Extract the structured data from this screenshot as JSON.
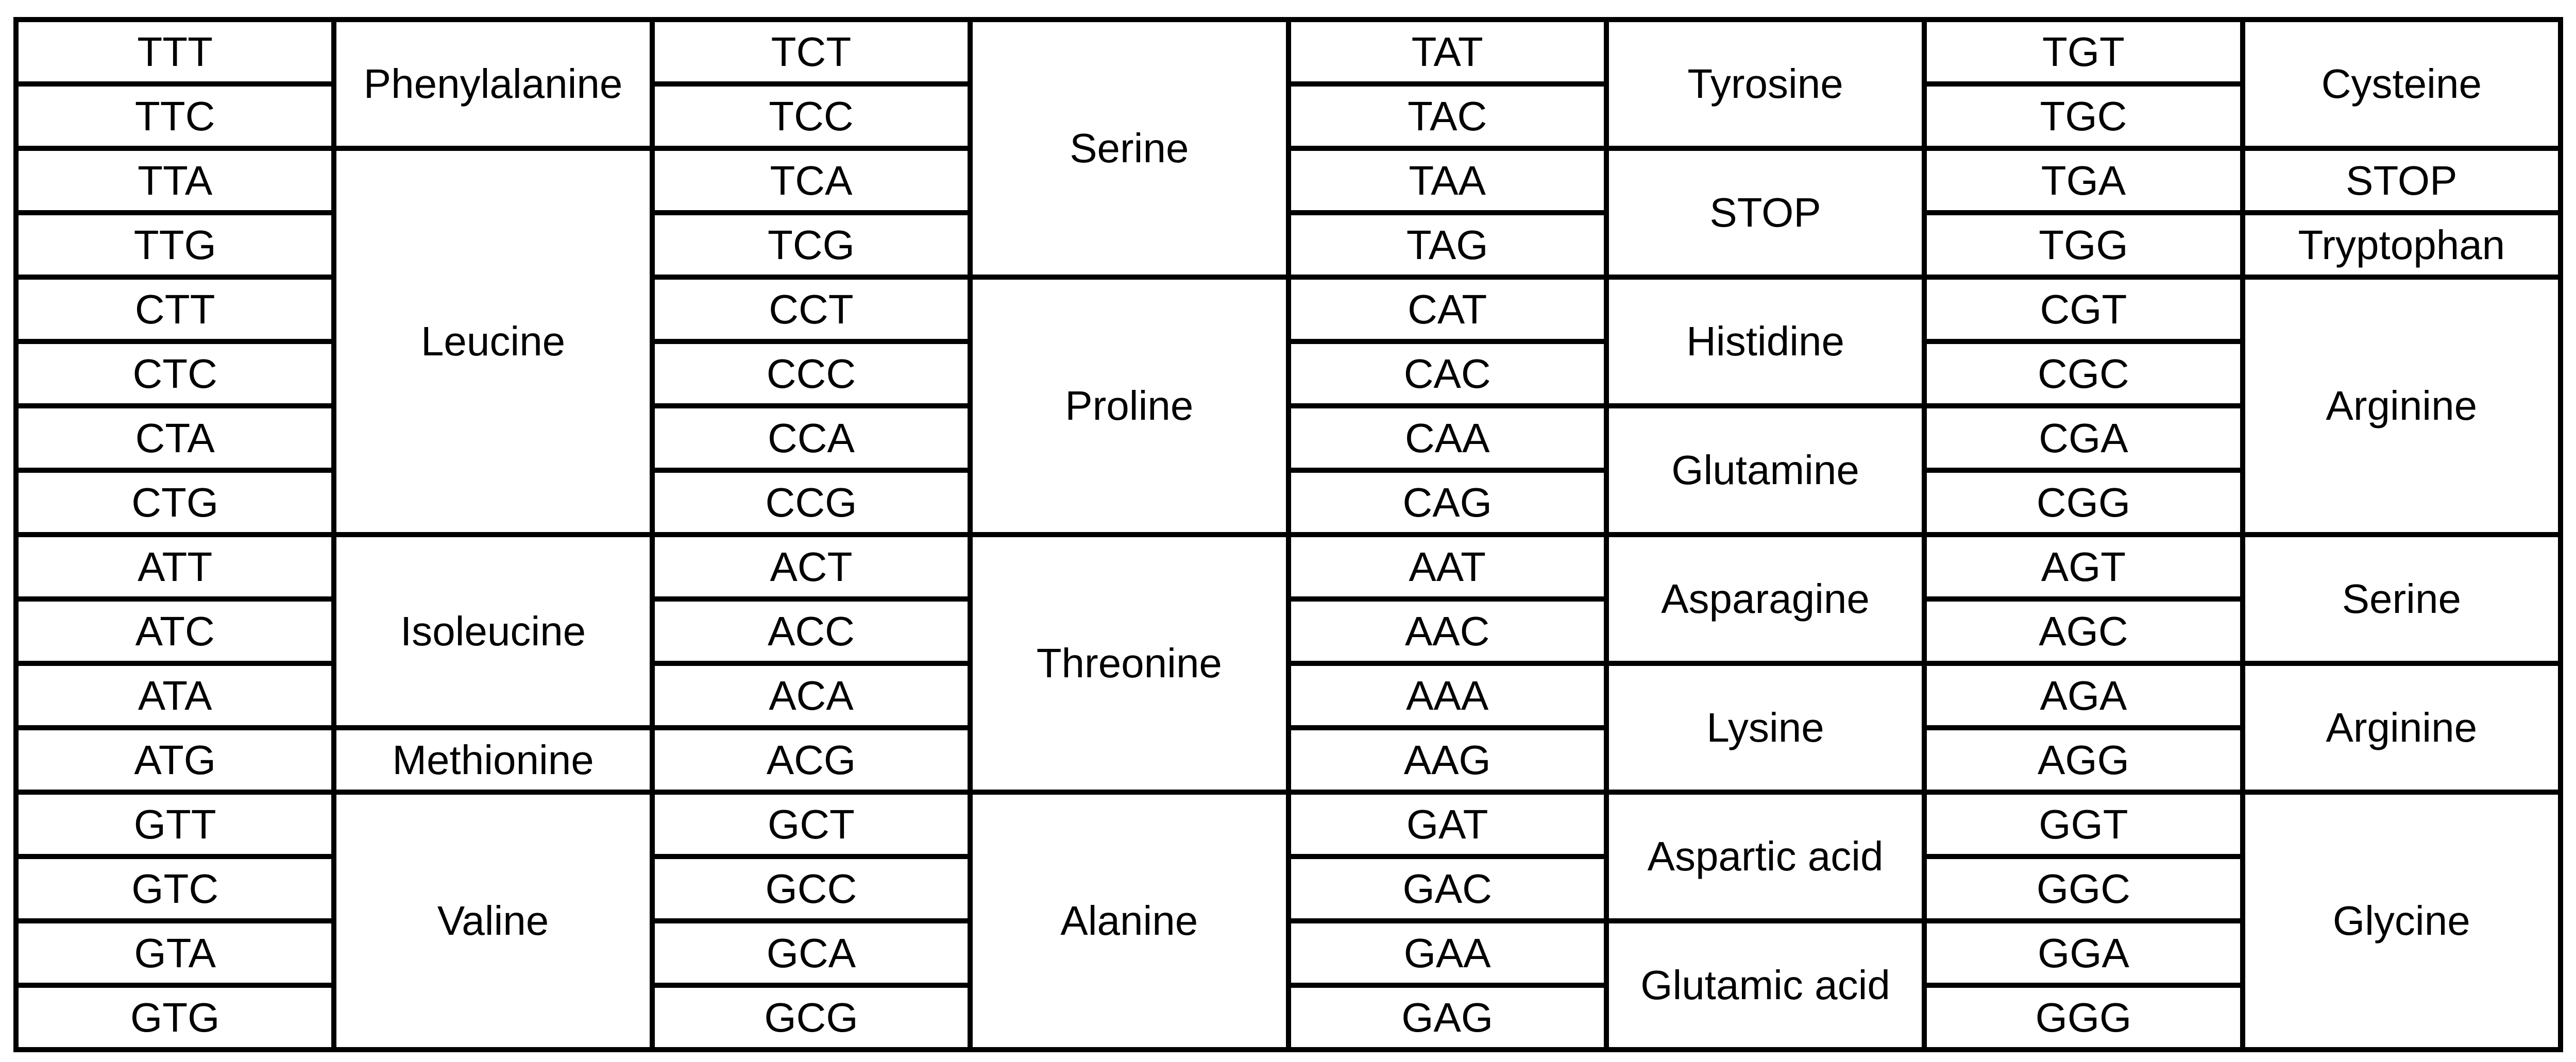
{
  "colors": {
    "background": "#ffffff",
    "border": "#000000",
    "text": "#000000"
  },
  "table": {
    "columns": [
      {
        "codons": [
          "TTT",
          "TTC",
          "TTA",
          "TTG",
          "CTT",
          "CTC",
          "CTA",
          "CTG",
          "ATT",
          "ATC",
          "ATA",
          "ATG",
          "GTT",
          "GTC",
          "GTA",
          "GTG"
        ],
        "amino_acids": [
          {
            "label": "Phenylalanine",
            "span": 2
          },
          {
            "label": "Leucine",
            "span": 6
          },
          {
            "label": "Isoleucine",
            "span": 3
          },
          {
            "label": "Methionine",
            "span": 1
          },
          {
            "label": "Valine",
            "span": 4
          }
        ]
      },
      {
        "codons": [
          "TCT",
          "TCC",
          "TCA",
          "TCG",
          "CCT",
          "CCC",
          "CCA",
          "CCG",
          "ACT",
          "ACC",
          "ACA",
          "ACG",
          "GCT",
          "GCC",
          "GCA",
          "GCG"
        ],
        "amino_acids": [
          {
            "label": "Serine",
            "span": 4
          },
          {
            "label": "Proline",
            "span": 4
          },
          {
            "label": "Threonine",
            "span": 4
          },
          {
            "label": "Alanine",
            "span": 4
          }
        ]
      },
      {
        "codons": [
          "TAT",
          "TAC",
          "TAA",
          "TAG",
          "CAT",
          "CAC",
          "CAA",
          "CAG",
          "AAT",
          "AAC",
          "AAA",
          "AAG",
          "GAT",
          "GAC",
          "GAA",
          "GAG"
        ],
        "amino_acids": [
          {
            "label": "Tyrosine",
            "span": 2
          },
          {
            "label": "STOP",
            "span": 2
          },
          {
            "label": "Histidine",
            "span": 2
          },
          {
            "label": "Glutamine",
            "span": 2
          },
          {
            "label": "Asparagine",
            "span": 2
          },
          {
            "label": "Lysine",
            "span": 2
          },
          {
            "label": "Aspartic acid",
            "span": 2
          },
          {
            "label": "Glutamic acid",
            "span": 2
          }
        ]
      },
      {
        "codons": [
          "TGT",
          "TGC",
          "TGA",
          "TGG",
          "CGT",
          "CGC",
          "CGA",
          "CGG",
          "AGT",
          "AGC",
          "AGA",
          "AGG",
          "GGT",
          "GGC",
          "GGA",
          "GGG"
        ],
        "amino_acids": [
          {
            "label": "Cysteine",
            "span": 2
          },
          {
            "label": "STOP",
            "span": 1
          },
          {
            "label": "Tryptophan",
            "span": 1
          },
          {
            "label": "Arginine",
            "span": 4
          },
          {
            "label": "Serine",
            "span": 2
          },
          {
            "label": "Arginine",
            "span": 2
          },
          {
            "label": "Glycine",
            "span": 4
          }
        ]
      }
    ]
  }
}
